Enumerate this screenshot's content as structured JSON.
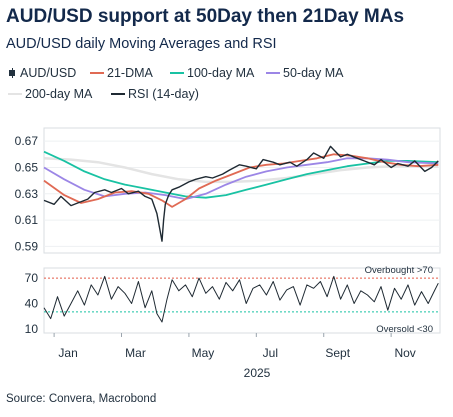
{
  "title": "AUD/USD support at 50Day then 21Day MAs",
  "subtitle": "AUD/USD daily Moving Averages and RSI",
  "source": "Source: Convera, Macrobond",
  "legend": [
    {
      "label": "AUD/USD",
      "color": "#1f2a33",
      "kind": "candle"
    },
    {
      "label": "21-DMA",
      "color": "#e06a54",
      "kind": "line"
    },
    {
      "label": "100-day MA",
      "color": "#19c2a3",
      "kind": "line"
    },
    {
      "label": "50-day MA",
      "color": "#9c86e6",
      "kind": "line"
    },
    {
      "label": "200-day MA",
      "color": "#e4e4e4",
      "kind": "line"
    },
    {
      "label": "RSI (14-day)",
      "color": "#1f2a33",
      "kind": "line"
    }
  ],
  "chart_data": [
    {
      "type": "line",
      "panel": "price",
      "ylim": [
        0.585,
        0.68
      ],
      "yticks": [
        "0.67",
        "0.65",
        "0.63",
        "0.61",
        "0.59"
      ],
      "ytick_values": [
        0.67,
        0.65,
        0.63,
        0.61,
        0.59
      ],
      "x_months": [
        "Jan",
        "Mar",
        "May",
        "Jul",
        "Sept",
        "Nov"
      ],
      "x_month_index": [
        0,
        2,
        4,
        6,
        8,
        10
      ],
      "year_label": "2025",
      "xlim": [
        -0.3,
        11.45
      ],
      "series": [
        {
          "name": "AUD/USD",
          "color": "#1f2a33",
          "x": [
            -0.3,
            0,
            0.2,
            0.5,
            0.7,
            1,
            1.2,
            1.5,
            1.7,
            2,
            2.2,
            2.5,
            2.7,
            2.9,
            3.05,
            3.15,
            3.2,
            3.25,
            3.3,
            3.4,
            3.5,
            3.7,
            4,
            4.2,
            4.5,
            4.7,
            5,
            5.2,
            5.5,
            5.7,
            6,
            6.2,
            6.5,
            6.7,
            7,
            7.2,
            7.5,
            7.7,
            8,
            8.2,
            8.5,
            8.7,
            9,
            9.2,
            9.5,
            9.7,
            10,
            10.2,
            10.5,
            10.7,
            11,
            11.2,
            11.4
          ],
          "values": [
            0.625,
            0.622,
            0.628,
            0.621,
            0.623,
            0.626,
            0.631,
            0.633,
            0.631,
            0.634,
            0.63,
            0.632,
            0.628,
            0.626,
            0.615,
            0.601,
            0.594,
            0.61,
            0.622,
            0.629,
            0.633,
            0.635,
            0.639,
            0.641,
            0.643,
            0.642,
            0.645,
            0.648,
            0.652,
            0.651,
            0.649,
            0.656,
            0.654,
            0.652,
            0.654,
            0.651,
            0.656,
            0.661,
            0.657,
            0.666,
            0.658,
            0.66,
            0.657,
            0.655,
            0.652,
            0.656,
            0.65,
            0.653,
            0.651,
            0.655,
            0.647,
            0.65,
            0.655
          ]
        },
        {
          "name": "21-DMA",
          "color": "#e06a54",
          "x": [
            -0.3,
            0.3,
            0.8,
            1.3,
            1.8,
            2.3,
            2.8,
            3.2,
            3.5,
            3.9,
            4.3,
            4.8,
            5.3,
            5.8,
            6.3,
            6.8,
            7.3,
            7.8,
            8.3,
            8.8,
            9.3,
            9.8,
            10.3,
            10.8,
            11.4
          ],
          "values": [
            0.64,
            0.629,
            0.623,
            0.626,
            0.631,
            0.632,
            0.63,
            0.625,
            0.62,
            0.626,
            0.634,
            0.64,
            0.645,
            0.65,
            0.652,
            0.653,
            0.655,
            0.657,
            0.66,
            0.659,
            0.657,
            0.654,
            0.652,
            0.651,
            0.652
          ]
        },
        {
          "name": "50-day MA",
          "color": "#9c86e6",
          "x": [
            -0.3,
            0.3,
            0.9,
            1.5,
            2.1,
            2.7,
            3.3,
            3.9,
            4.5,
            5.1,
            5.7,
            6.3,
            6.9,
            7.5,
            8.1,
            8.7,
            9.3,
            9.9,
            10.5,
            11.4
          ],
          "values": [
            0.65,
            0.641,
            0.633,
            0.628,
            0.63,
            0.631,
            0.629,
            0.626,
            0.63,
            0.637,
            0.643,
            0.647,
            0.65,
            0.652,
            0.654,
            0.657,
            0.657,
            0.656,
            0.654,
            0.653
          ]
        },
        {
          "name": "100-day MA",
          "color": "#19c2a3",
          "x": [
            -0.3,
            0.3,
            0.9,
            1.5,
            2.1,
            2.7,
            3.3,
            3.9,
            4.5,
            5.1,
            5.7,
            6.3,
            6.9,
            7.5,
            8.1,
            8.7,
            9.3,
            9.9,
            10.5,
            11.4
          ],
          "values": [
            0.662,
            0.655,
            0.647,
            0.641,
            0.637,
            0.634,
            0.631,
            0.628,
            0.627,
            0.629,
            0.633,
            0.637,
            0.641,
            0.645,
            0.648,
            0.651,
            0.653,
            0.655,
            0.655,
            0.654
          ]
        },
        {
          "name": "200-day MA",
          "color": "#e4e4e4",
          "x": [
            -0.3,
            0.5,
            1.3,
            2.1,
            2.9,
            3.7,
            4.5,
            5.3,
            6.1,
            6.9,
            7.7,
            8.5,
            9.3,
            10.1,
            10.9,
            11.4
          ],
          "values": [
            0.657,
            0.656,
            0.654,
            0.65,
            0.645,
            0.641,
            0.639,
            0.639,
            0.64,
            0.642,
            0.645,
            0.648,
            0.65,
            0.651,
            0.651,
            0.651
          ]
        }
      ]
    },
    {
      "type": "line",
      "panel": "rsi",
      "ylim": [
        5,
        82
      ],
      "yticks": [
        "70",
        "40",
        "10"
      ],
      "ytick_values": [
        70,
        40,
        10
      ],
      "xlim": [
        -0.3,
        11.45
      ],
      "annotations": [
        {
          "text": "Overbought >70",
          "value": 70,
          "color": "#e35b48"
        },
        {
          "text": "Oversold <30",
          "value": 30,
          "color": "#19c2a3"
        }
      ],
      "series": [
        {
          "name": "RSI (14-day)",
          "color": "#1f2a33",
          "x": [
            -0.3,
            -0.1,
            0.1,
            0.3,
            0.5,
            0.7,
            0.9,
            1.1,
            1.3,
            1.5,
            1.7,
            1.9,
            2.1,
            2.3,
            2.5,
            2.7,
            2.9,
            3.05,
            3.2,
            3.35,
            3.5,
            3.7,
            3.9,
            4.1,
            4.3,
            4.5,
            4.7,
            4.9,
            5.1,
            5.3,
            5.5,
            5.7,
            5.9,
            6.1,
            6.3,
            6.5,
            6.7,
            6.9,
            7.1,
            7.3,
            7.5,
            7.7,
            7.9,
            8.1,
            8.3,
            8.5,
            8.7,
            8.9,
            9.1,
            9.3,
            9.5,
            9.7,
            9.9,
            10.1,
            10.3,
            10.5,
            10.7,
            10.9,
            11.1,
            11.3,
            11.4
          ],
          "values": [
            35,
            22,
            48,
            25,
            40,
            55,
            38,
            62,
            50,
            72,
            45,
            60,
            52,
            40,
            66,
            35,
            55,
            28,
            18,
            45,
            68,
            55,
            62,
            48,
            70,
            52,
            60,
            45,
            65,
            55,
            68,
            40,
            58,
            62,
            50,
            66,
            44,
            56,
            60,
            38,
            62,
            58,
            66,
            48,
            72,
            45,
            62,
            40,
            55,
            50,
            42,
            60,
            32,
            58,
            45,
            62,
            38,
            54,
            40,
            56,
            64
          ]
        }
      ]
    }
  ]
}
